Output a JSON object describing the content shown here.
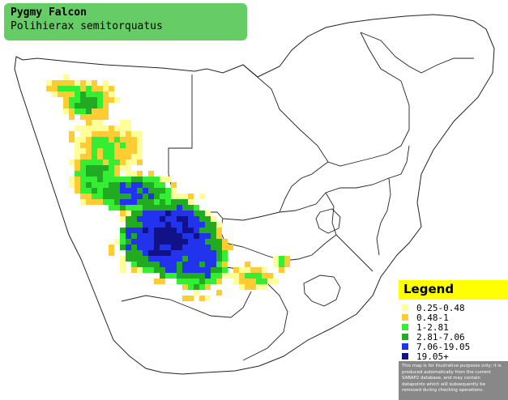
{
  "title": {
    "common_name": "Pygmy Falcon",
    "scientific_name": "Polihierax semitorquatus"
  },
  "legend": {
    "title": "Legend",
    "entries": [
      {
        "label": "0.25-0.48",
        "color": "#ffff99"
      },
      {
        "label": "0.48-1",
        "color": "#ffcc33"
      },
      {
        "label": "1-2.81",
        "color": "#33ee33"
      },
      {
        "label": "2.81-7.06",
        "color": "#22aa22"
      },
      {
        "label": "7.06-19.05",
        "color": "#2233ee"
      },
      {
        "label": "19.05+",
        "color": "#111188"
      }
    ],
    "disclaimer": "This map is for illustrative purposes only; it is produced automatically from the current SABAP2 database, and may contain datapoints which will subsequently be removed during checking operations."
  },
  "colors": {
    "title_box": "#66cc66",
    "legend_header": "#ffff00",
    "land": "#ffffff",
    "border": "#222222"
  }
}
